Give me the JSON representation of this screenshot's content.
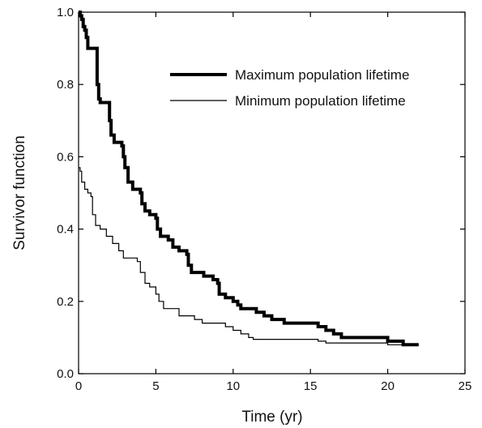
{
  "chart_data": {
    "type": "line",
    "title": "",
    "xlabel": "Time (yr)",
    "ylabel": "Survivor function",
    "xlim": [
      0,
      25
    ],
    "ylim": [
      0,
      1.0
    ],
    "x_ticks": [
      0,
      5,
      10,
      15,
      20,
      25
    ],
    "x_tick_labels": [
      "0",
      "5",
      "10",
      "15",
      "20",
      "25"
    ],
    "y_ticks": [
      0,
      0.2,
      0.4,
      0.6,
      0.8,
      1.0
    ],
    "y_tick_labels": [
      "0.0",
      "0.2",
      "0.4",
      "0.6",
      "0.8",
      "1.0"
    ],
    "grid": false,
    "legend_position": "top-right",
    "series": [
      {
        "name": "Maximum population lifetime",
        "style": "thick",
        "color": "#000000",
        "points": [
          [
            0,
            1.0
          ],
          [
            0.1,
            0.99
          ],
          [
            0.2,
            0.98
          ],
          [
            0.3,
            0.96
          ],
          [
            0.4,
            0.95
          ],
          [
            0.5,
            0.93
          ],
          [
            0.6,
            0.9
          ],
          [
            1.2,
            0.9
          ],
          [
            1.2,
            0.8
          ],
          [
            1.3,
            0.8
          ],
          [
            1.3,
            0.76
          ],
          [
            1.4,
            0.75
          ],
          [
            2.0,
            0.75
          ],
          [
            2.0,
            0.7
          ],
          [
            2.1,
            0.66
          ],
          [
            2.3,
            0.64
          ],
          [
            2.8,
            0.63
          ],
          [
            2.9,
            0.6
          ],
          [
            3.0,
            0.57
          ],
          [
            3.2,
            0.53
          ],
          [
            3.5,
            0.51
          ],
          [
            4.0,
            0.5
          ],
          [
            4.1,
            0.47
          ],
          [
            4.3,
            0.45
          ],
          [
            4.6,
            0.44
          ],
          [
            5.0,
            0.43
          ],
          [
            5.1,
            0.4
          ],
          [
            5.3,
            0.38
          ],
          [
            5.8,
            0.37
          ],
          [
            6.1,
            0.35
          ],
          [
            6.5,
            0.34
          ],
          [
            7.0,
            0.33
          ],
          [
            7.1,
            0.3
          ],
          [
            7.3,
            0.28
          ],
          [
            8.0,
            0.28
          ],
          [
            8.1,
            0.27
          ],
          [
            8.7,
            0.26
          ],
          [
            9.0,
            0.25
          ],
          [
            9.1,
            0.22
          ],
          [
            9.5,
            0.21
          ],
          [
            10.0,
            0.2
          ],
          [
            10.3,
            0.19
          ],
          [
            10.5,
            0.18
          ],
          [
            11.5,
            0.17
          ],
          [
            12.0,
            0.16
          ],
          [
            12.5,
            0.15
          ],
          [
            13.3,
            0.14
          ],
          [
            14.5,
            0.14
          ],
          [
            15.5,
            0.13
          ],
          [
            16.0,
            0.12
          ],
          [
            16.5,
            0.11
          ],
          [
            17.0,
            0.1
          ],
          [
            20.0,
            0.09
          ],
          [
            21.0,
            0.08
          ],
          [
            22.0,
            0.08
          ]
        ]
      },
      {
        "name": "Minimum population lifetime",
        "style": "thin",
        "color": "#000000",
        "points": [
          [
            0,
            0.57
          ],
          [
            0.1,
            0.56
          ],
          [
            0.2,
            0.53
          ],
          [
            0.4,
            0.51
          ],
          [
            0.6,
            0.5
          ],
          [
            0.8,
            0.49
          ],
          [
            0.9,
            0.44
          ],
          [
            1.1,
            0.41
          ],
          [
            1.4,
            0.4
          ],
          [
            1.8,
            0.38
          ],
          [
            2.2,
            0.36
          ],
          [
            2.6,
            0.34
          ],
          [
            2.9,
            0.32
          ],
          [
            3.5,
            0.32
          ],
          [
            3.8,
            0.31
          ],
          [
            4.0,
            0.28
          ],
          [
            4.3,
            0.25
          ],
          [
            4.6,
            0.24
          ],
          [
            5.0,
            0.22
          ],
          [
            5.2,
            0.2
          ],
          [
            5.5,
            0.18
          ],
          [
            6.0,
            0.18
          ],
          [
            6.5,
            0.16
          ],
          [
            7.0,
            0.16
          ],
          [
            7.5,
            0.15
          ],
          [
            8.0,
            0.14
          ],
          [
            9.0,
            0.14
          ],
          [
            9.5,
            0.13
          ],
          [
            10.0,
            0.12
          ],
          [
            10.5,
            0.11
          ],
          [
            11.0,
            0.1
          ],
          [
            11.3,
            0.095
          ],
          [
            12.5,
            0.095
          ],
          [
            15.5,
            0.09
          ],
          [
            16.0,
            0.085
          ],
          [
            19.0,
            0.085
          ],
          [
            20.0,
            0.08
          ],
          [
            22.0,
            0.08
          ]
        ]
      }
    ]
  }
}
